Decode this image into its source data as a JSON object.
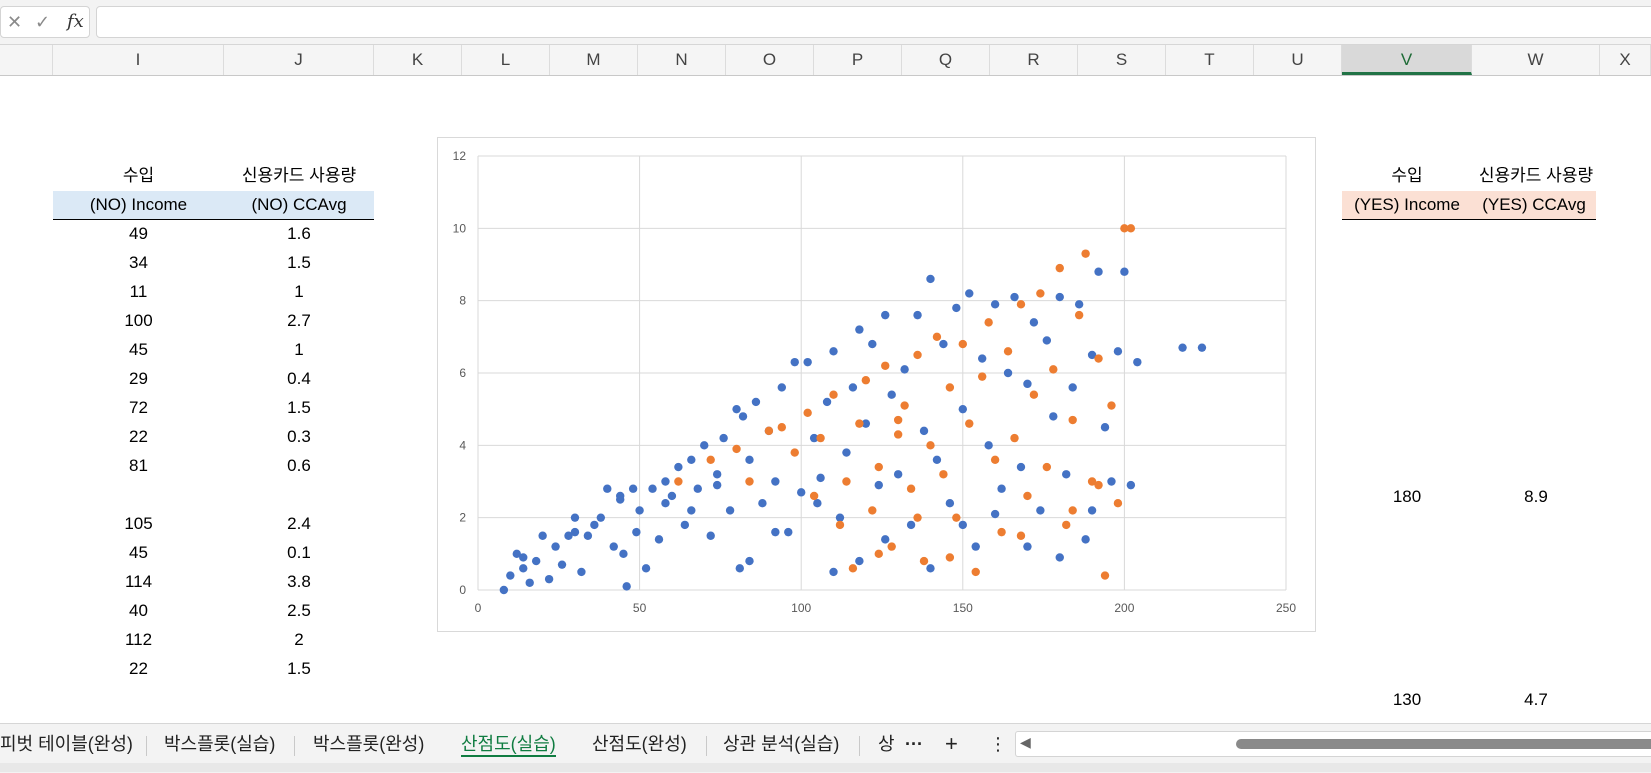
{
  "formula_bar": {
    "cancel_icon": "close-icon",
    "enter_icon": "check-icon",
    "fx_label": "fx",
    "value": ""
  },
  "columns": [
    "I",
    "J",
    "K",
    "L",
    "M",
    "N",
    "O",
    "P",
    "Q",
    "R",
    "S",
    "T",
    "U",
    "V",
    "W",
    "X"
  ],
  "selected_column": "V",
  "left_table": {
    "header_kr_income": "수입",
    "header_kr_ccavg": "신용카드 사용량",
    "header_income": "(NO) Income",
    "header_ccavg": "(NO) CCAvg",
    "rows": [
      {
        "income": "49",
        "ccavg": "1.6"
      },
      {
        "income": "34",
        "ccavg": "1.5"
      },
      {
        "income": "11",
        "ccavg": "1"
      },
      {
        "income": "100",
        "ccavg": "2.7"
      },
      {
        "income": "45",
        "ccavg": "1"
      },
      {
        "income": "29",
        "ccavg": "0.4"
      },
      {
        "income": "72",
        "ccavg": "1.5"
      },
      {
        "income": "22",
        "ccavg": "0.3"
      },
      {
        "income": "81",
        "ccavg": "0.6"
      },
      {
        "income": "",
        "ccavg": ""
      },
      {
        "income": "105",
        "ccavg": "2.4"
      },
      {
        "income": "45",
        "ccavg": "0.1"
      },
      {
        "income": "114",
        "ccavg": "3.8"
      },
      {
        "income": "40",
        "ccavg": "2.5"
      },
      {
        "income": "112",
        "ccavg": "2"
      },
      {
        "income": "22",
        "ccavg": "1.5"
      }
    ]
  },
  "right_table": {
    "header_kr_income": "수입",
    "header_kr_ccavg": "신용카드 사용량",
    "header_income": "(YES) Income",
    "header_ccavg": "(YES) CCAvg",
    "rows": [
      {
        "income": "180",
        "ccavg": "8.9"
      },
      {
        "income": "130",
        "ccavg": "4.7"
      }
    ]
  },
  "chart_data": {
    "type": "scatter",
    "xlim": [
      0,
      250
    ],
    "ylim": [
      0,
      12
    ],
    "xticks": [
      "0",
      "50",
      "100",
      "150",
      "200",
      "250"
    ],
    "yticks": [
      "0",
      "2",
      "4",
      "6",
      "8",
      "10",
      "12"
    ],
    "grid": true,
    "legend": "none",
    "series": [
      {
        "color": "#4472c4",
        "points": [
          [
            8,
            0
          ],
          [
            10,
            0.4
          ],
          [
            12,
            1
          ],
          [
            14,
            0.6
          ],
          [
            16,
            0.2
          ],
          [
            18,
            0.8
          ],
          [
            20,
            1.5
          ],
          [
            22,
            0.3
          ],
          [
            24,
            1.2
          ],
          [
            26,
            0.7
          ],
          [
            28,
            1.5
          ],
          [
            30,
            2
          ],
          [
            32,
            0.5
          ],
          [
            34,
            1.5
          ],
          [
            36,
            1.8
          ],
          [
            38,
            2
          ],
          [
            40,
            2.8
          ],
          [
            42,
            1.2
          ],
          [
            44,
            2.5
          ],
          [
            45,
            1
          ],
          [
            46,
            0.1
          ],
          [
            48,
            2.8
          ],
          [
            49,
            1.6
          ],
          [
            50,
            2.2
          ],
          [
            52,
            0.6
          ],
          [
            54,
            2.8
          ],
          [
            56,
            1.4
          ],
          [
            58,
            3
          ],
          [
            60,
            2.6
          ],
          [
            62,
            3.4
          ],
          [
            64,
            1.8
          ],
          [
            66,
            3.6
          ],
          [
            68,
            2.8
          ],
          [
            70,
            4
          ],
          [
            72,
            1.5
          ],
          [
            74,
            3.2
          ],
          [
            76,
            4.2
          ],
          [
            78,
            2.2
          ],
          [
            80,
            5
          ],
          [
            81,
            0.6
          ],
          [
            82,
            4.8
          ],
          [
            84,
            3.6
          ],
          [
            86,
            5.2
          ],
          [
            88,
            2.4
          ],
          [
            90,
            4.4
          ],
          [
            92,
            3
          ],
          [
            94,
            5.6
          ],
          [
            96,
            1.6
          ],
          [
            98,
            6.3
          ],
          [
            100,
            2.7
          ],
          [
            102,
            6.3
          ],
          [
            104,
            4.2
          ],
          [
            105,
            2.4
          ],
          [
            106,
            3.1
          ],
          [
            108,
            5.2
          ],
          [
            110,
            6.6
          ],
          [
            112,
            2
          ],
          [
            114,
            3.8
          ],
          [
            116,
            5.6
          ],
          [
            118,
            7.2
          ],
          [
            120,
            4.6
          ],
          [
            122,
            6.8
          ],
          [
            124,
            2.9
          ],
          [
            126,
            7.6
          ],
          [
            128,
            5.4
          ],
          [
            130,
            3.2
          ],
          [
            132,
            6.1
          ],
          [
            134,
            1.8
          ],
          [
            136,
            7.6
          ],
          [
            138,
            4.4
          ],
          [
            140,
            8.6
          ],
          [
            142,
            3.6
          ],
          [
            144,
            6.8
          ],
          [
            146,
            2.4
          ],
          [
            148,
            7.8
          ],
          [
            150,
            5
          ],
          [
            152,
            8.2
          ],
          [
            154,
            1.2
          ],
          [
            156,
            6.4
          ],
          [
            158,
            4
          ],
          [
            160,
            7.9
          ],
          [
            162,
            2.8
          ],
          [
            164,
            6
          ],
          [
            166,
            8.1
          ],
          [
            168,
            3.4
          ],
          [
            170,
            5.7
          ],
          [
            172,
            7.4
          ],
          [
            174,
            2.2
          ],
          [
            176,
            6.9
          ],
          [
            178,
            4.8
          ],
          [
            180,
            8.1
          ],
          [
            182,
            3.2
          ],
          [
            184,
            5.6
          ],
          [
            186,
            7.9
          ],
          [
            188,
            1.4
          ],
          [
            190,
            6.5
          ],
          [
            192,
            8.8
          ],
          [
            194,
            4.5
          ],
          [
            196,
            3
          ],
          [
            198,
            6.6
          ],
          [
            200,
            8.8
          ],
          [
            202,
            2.9
          ],
          [
            204,
            6.3
          ],
          [
            218,
            6.7
          ],
          [
            224,
            6.7
          ],
          [
            14,
            0.9
          ],
          [
            30,
            1.6
          ],
          [
            44,
            2.6
          ],
          [
            58,
            2.4
          ],
          [
            66,
            2.2
          ],
          [
            74,
            2.9
          ],
          [
            84,
            0.8
          ],
          [
            92,
            1.6
          ],
          [
            110,
            0.5
          ],
          [
            118,
            0.8
          ],
          [
            126,
            1.4
          ],
          [
            140,
            0.6
          ],
          [
            150,
            1.8
          ],
          [
            160,
            2.1
          ],
          [
            170,
            1.2
          ],
          [
            180,
            0.9
          ],
          [
            190,
            2.2
          ]
        ]
      },
      {
        "color": "#ed7d31",
        "points": [
          [
            62,
            3
          ],
          [
            72,
            3.6
          ],
          [
            80,
            3.9
          ],
          [
            84,
            3
          ],
          [
            90,
            4.4
          ],
          [
            94,
            4.5
          ],
          [
            98,
            3.8
          ],
          [
            102,
            4.9
          ],
          [
            104,
            2.6
          ],
          [
            106,
            4.2
          ],
          [
            110,
            5.4
          ],
          [
            112,
            1.8
          ],
          [
            114,
            3
          ],
          [
            116,
            0.6
          ],
          [
            118,
            4.6
          ],
          [
            120,
            5.8
          ],
          [
            122,
            2.2
          ],
          [
            124,
            3.4
          ],
          [
            126,
            6.2
          ],
          [
            128,
            1.2
          ],
          [
            130,
            4.3
          ],
          [
            132,
            5.1
          ],
          [
            134,
            2.8
          ],
          [
            136,
            6.5
          ],
          [
            138,
            0.8
          ],
          [
            140,
            4
          ],
          [
            142,
            7
          ],
          [
            144,
            3.2
          ],
          [
            146,
            5.6
          ],
          [
            148,
            2
          ],
          [
            150,
            6.8
          ],
          [
            152,
            4.6
          ],
          [
            154,
            0.5
          ],
          [
            156,
            5.9
          ],
          [
            158,
            7.4
          ],
          [
            160,
            3.6
          ],
          [
            162,
            1.6
          ],
          [
            164,
            6.6
          ],
          [
            166,
            4.2
          ],
          [
            168,
            7.9
          ],
          [
            170,
            2.6
          ],
          [
            172,
            5.4
          ],
          [
            174,
            8.2
          ],
          [
            176,
            3.4
          ],
          [
            178,
            6.1
          ],
          [
            180,
            8.9
          ],
          [
            182,
            1.8
          ],
          [
            184,
            4.7
          ],
          [
            186,
            7.6
          ],
          [
            188,
            9.3
          ],
          [
            190,
            3
          ],
          [
            192,
            6.4
          ],
          [
            194,
            0.4
          ],
          [
            196,
            5.1
          ],
          [
            198,
            2.4
          ],
          [
            200,
            10
          ],
          [
            202,
            10
          ],
          [
            130,
            4.7
          ],
          [
            124,
            1
          ],
          [
            136,
            2
          ],
          [
            146,
            0.9
          ],
          [
            168,
            1.5
          ],
          [
            184,
            2.2
          ],
          [
            192,
            2.9
          ]
        ]
      }
    ]
  },
  "sheet_tabs": [
    {
      "label": "피벗 테이블(완성)",
      "active": false
    },
    {
      "label": "박스플롯(실습)",
      "active": false
    },
    {
      "label": "박스플롯(완성)",
      "active": false
    },
    {
      "label": "산점도(실습)",
      "active": true
    },
    {
      "label": "산점도(완성)",
      "active": false
    },
    {
      "label": "상관 분석(실습)",
      "active": false
    },
    {
      "label": "상",
      "active": false
    }
  ],
  "tab_controls": {
    "more": "···",
    "add": "+",
    "menu": "⋮"
  }
}
